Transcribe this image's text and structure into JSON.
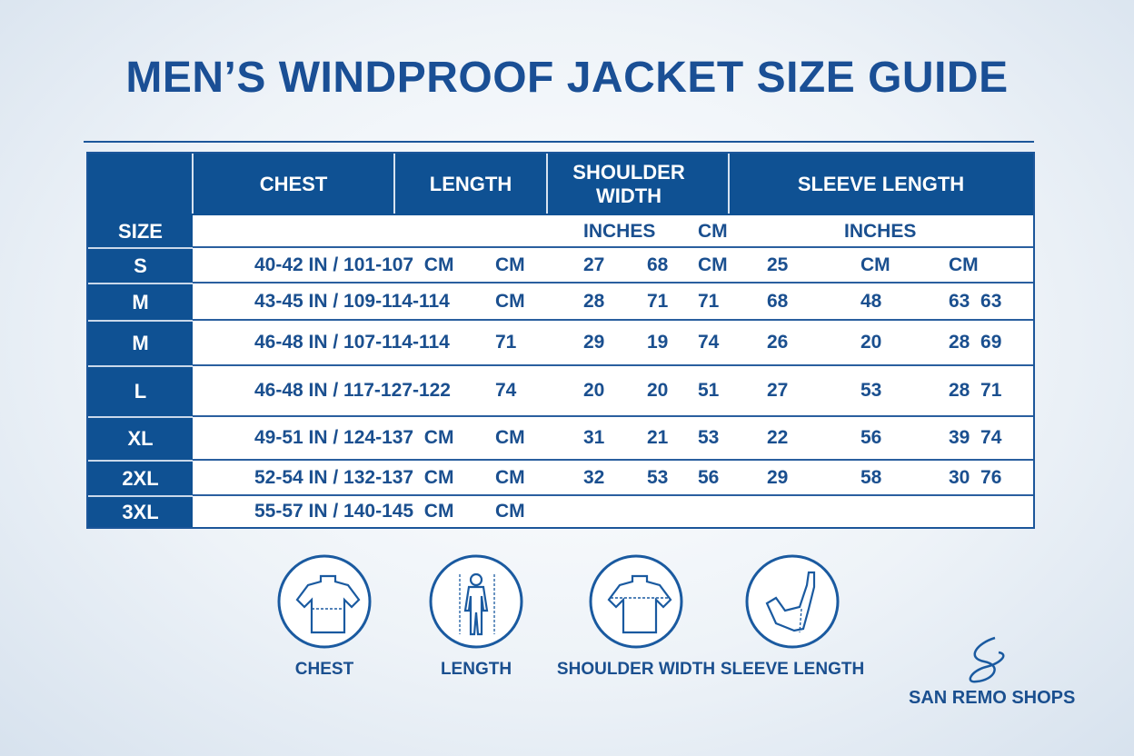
{
  "title": "MEN’S WINDPROOF JACKET SIZE GUIDE",
  "colors": {
    "primary": "#0f5193",
    "text": "#1a4f8f",
    "background": "#eef3f8"
  },
  "table": {
    "headers": [
      "CHEST",
      "LENGTH",
      "SHOULDER WIDTH",
      "SLEEVE LENGTH"
    ],
    "size_label": "SIZE",
    "subheaders": {
      "shoulder_inches": "INCHES",
      "shoulder_cm": "CM",
      "sleeve_inches": "INCHES"
    },
    "rows": [
      {
        "size": "S",
        "cells": [
          "40-42 IN / 101-107  CM",
          "CM",
          "27",
          "68",
          "CM",
          "25",
          "CM",
          "CM"
        ]
      },
      {
        "size": "M",
        "cells": [
          "43-45 IN / 109-114-114",
          "CM",
          "28",
          "71",
          "71",
          "68",
          "48",
          "63  63"
        ]
      },
      {
        "size": "M",
        "cells": [
          "46-48 IN / 107-114-114",
          "71",
          "29",
          "19",
          "74",
          "26",
          "20",
          "28  69"
        ]
      },
      {
        "size": "L",
        "cells": [
          "46-48 IN / 117-127-122",
          "74",
          "20",
          "20",
          "51",
          "27",
          "53",
          "28  71"
        ]
      },
      {
        "size": "XL",
        "cells": [
          "49-51 IN / 124-137  CM",
          "CM",
          "31",
          "21",
          "53",
          "22",
          "56",
          "39  74"
        ]
      },
      {
        "size": "2XL",
        "cells": [
          "52-54 IN / 132-137  CM",
          "CM",
          "32",
          "53",
          "56",
          "29",
          "58",
          "30  76"
        ]
      },
      {
        "size": "3XL",
        "cells": [
          "55-57 IN / 140-145  CM",
          "CM"
        ]
      }
    ]
  },
  "icons": [
    {
      "label": "CHEST",
      "icon": "shirt-chest-icon"
    },
    {
      "label": "LENGTH",
      "icon": "body-length-icon"
    },
    {
      "label": "SHOULDER WIDTH",
      "icon": "shirt-shoulder-icon"
    },
    {
      "label": "SLEEVE LENGTH",
      "icon": "arm-sleeve-icon"
    }
  ],
  "brand": "SAN REMO SHOPS"
}
